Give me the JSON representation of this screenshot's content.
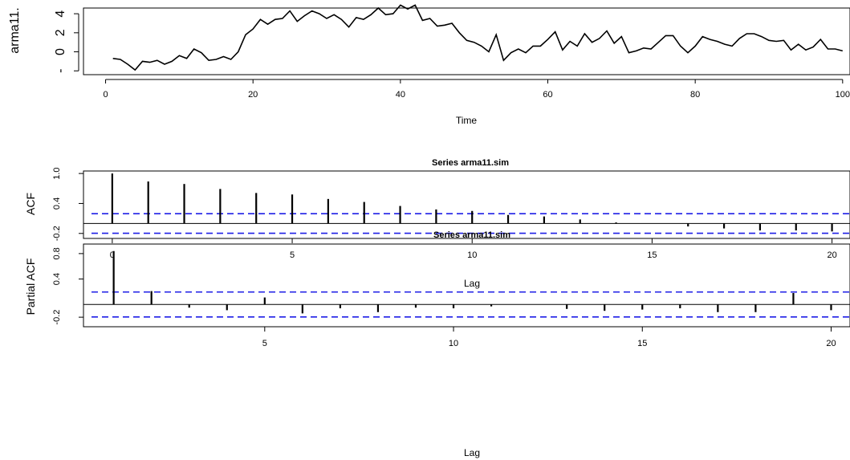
{
  "chart_data": [
    {
      "type": "line",
      "name": "time-series",
      "xlabel": "Time",
      "ylabel": "arma11.",
      "xticks": [
        0,
        20,
        40,
        60,
        80,
        100
      ],
      "yticks": [
        "-",
        "0",
        "2",
        "4"
      ],
      "xlim": [
        -3,
        101
      ],
      "ylim": [
        -2.4,
        4.6
      ],
      "x": [
        1,
        2,
        3,
        4,
        5,
        6,
        7,
        8,
        9,
        10,
        11,
        12,
        13,
        14,
        15,
        16,
        17,
        18,
        19,
        20,
        21,
        22,
        23,
        24,
        25,
        26,
        27,
        28,
        29,
        30,
        31,
        32,
        33,
        34,
        35,
        36,
        37,
        38,
        39,
        40,
        41,
        42,
        43,
        44,
        45,
        46,
        47,
        48,
        49,
        50,
        51,
        52,
        53,
        54,
        55,
        56,
        57,
        58,
        59,
        60,
        61,
        62,
        63,
        64,
        65,
        66,
        67,
        68,
        69,
        70,
        71,
        72,
        73,
        74,
        75,
        76,
        77,
        78,
        79,
        80,
        81,
        82,
        83,
        84,
        85,
        86,
        87,
        88,
        89,
        90,
        91,
        92,
        93,
        94,
        95,
        96,
        97,
        98,
        99,
        100
      ],
      "y": [
        -0.7,
        -0.8,
        -1.3,
        -1.9,
        -1.0,
        -1.1,
        -0.9,
        -1.3,
        -1.0,
        -0.4,
        -0.7,
        0.3,
        -0.1,
        -0.9,
        -0.8,
        -0.5,
        -0.8,
        0.0,
        1.8,
        2.4,
        3.4,
        2.9,
        3.4,
        3.5,
        4.3,
        3.2,
        3.8,
        4.3,
        4.0,
        3.5,
        3.9,
        3.4,
        2.6,
        3.6,
        3.4,
        3.9,
        4.6,
        3.9,
        4.0,
        4.9,
        4.5,
        4.9,
        3.3,
        3.5,
        2.7,
        2.8,
        3.0,
        2.0,
        1.2,
        1.0,
        0.6,
        0.0,
        1.8,
        -0.9,
        -0.1,
        0.3,
        -0.1,
        0.6,
        0.6,
        1.3,
        2.1,
        0.2,
        1.1,
        0.6,
        1.9,
        1.0,
        1.4,
        2.2,
        0.9,
        1.6,
        -0.1,
        0.1,
        0.4,
        0.3,
        1.0,
        1.7,
        1.7,
        0.6,
        -0.1,
        0.6,
        1.6,
        1.3,
        1.1,
        0.8,
        0.6,
        1.4,
        1.9,
        1.9,
        1.6,
        1.2,
        1.1,
        1.2,
        0.2,
        0.8,
        0.2,
        0.5,
        1.3,
        0.3,
        0.3,
        0.1
      ]
    },
    {
      "type": "bar",
      "name": "acf",
      "title": "Series  arma11.sim",
      "xlabel": "Lag",
      "ylabel": "ACF",
      "xticks": [
        0,
        5,
        10,
        15,
        20
      ],
      "yticks": [
        "-0.2",
        "0.4",
        "1.0"
      ],
      "xlim": [
        -0.8,
        20.5
      ],
      "ylim": [
        -0.3,
        1.05
      ],
      "lags": [
        0,
        1,
        2,
        3,
        4,
        5,
        6,
        7,
        8,
        9,
        10,
        11,
        12,
        13,
        14,
        15,
        16,
        17,
        18,
        19,
        20
      ],
      "values": [
        1.0,
        0.84,
        0.79,
        0.69,
        0.61,
        0.58,
        0.49,
        0.43,
        0.35,
        0.28,
        0.25,
        0.17,
        0.14,
        0.08,
        0.02,
        0.0,
        -0.06,
        -0.1,
        -0.14,
        -0.14,
        -0.16
      ],
      "ci": 0.196
    },
    {
      "type": "bar",
      "name": "pacf",
      "title": "Series  arma11.sim",
      "xlabel": "Lag",
      "ylabel": "Partial ACF",
      "xticks": [
        5,
        10,
        15,
        20
      ],
      "yticks": [
        "-0.2",
        "0.4",
        "0.8"
      ],
      "xlim": [
        0.2,
        20.5
      ],
      "ylim": [
        -0.35,
        0.95
      ],
      "lags": [
        1,
        2,
        3,
        4,
        5,
        6,
        7,
        8,
        9,
        10,
        11,
        12,
        13,
        14,
        15,
        16,
        17,
        18,
        19,
        20
      ],
      "values": [
        0.84,
        0.21,
        -0.05,
        -0.09,
        0.11,
        -0.14,
        -0.06,
        -0.12,
        -0.05,
        -0.06,
        -0.03,
        0.0,
        -0.07,
        -0.1,
        -0.08,
        -0.06,
        -0.12,
        -0.12,
        0.18,
        -0.09
      ],
      "ci": 0.196
    }
  ],
  "colors": {
    "ci_line": "#1f1fe6",
    "data": "#000000"
  }
}
